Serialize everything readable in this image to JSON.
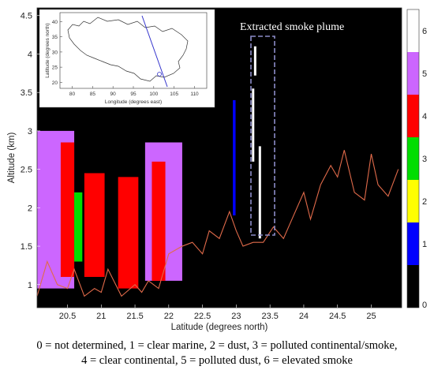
{
  "chart_data": {
    "type": "heatmap",
    "xlabel": "Latitude (degrees north)",
    "ylabel": "Altitude (km)",
    "xlim": [
      20.05,
      25.45
    ],
    "ylim": [
      0.7,
      4.6
    ],
    "x_ticks": [
      "20.5",
      "21",
      "21.5",
      "22",
      "22.5",
      "23",
      "23.5",
      "24",
      "24.5",
      "25"
    ],
    "y_ticks": [
      "1",
      "1.5",
      "2",
      "2.5",
      "3",
      "3.5",
      "4",
      "4.5"
    ],
    "colorbar": {
      "ticks": [
        "0",
        "1",
        "2",
        "3",
        "4",
        "5",
        "6"
      ],
      "colors": [
        "#000000",
        "#0000ff",
        "#ffff00",
        "#00dd00",
        "#ff0000",
        "#cc66ff",
        "#ffffff"
      ]
    },
    "annotation": "Extracted smoke plume",
    "inset": {
      "xlabel": "Longitude (degrees east)",
      "ylabel": "Latitude (degrees north)",
      "x_ticks": [
        "80",
        "85",
        "90",
        "95",
        "100",
        "105",
        "110"
      ],
      "y_ticks": [
        "20",
        "25",
        "30",
        "35",
        "40"
      ]
    },
    "surface_line": {
      "color": "#e06a4a",
      "x": [
        20.05,
        20.2,
        20.35,
        20.5,
        20.6,
        20.75,
        20.9,
        21.0,
        21.1,
        21.3,
        21.5,
        21.6,
        21.7,
        21.85,
        22.0,
        22.2,
        22.35,
        22.5,
        22.6,
        22.75,
        22.9,
        23.0,
        23.1,
        23.25,
        23.4,
        23.55,
        23.7,
        23.85,
        24.0,
        24.1,
        24.25,
        24.4,
        24.5,
        24.6,
        24.75,
        24.9,
        25.0,
        25.1,
        25.25,
        25.4
      ],
      "y": [
        0.85,
        1.3,
        1.0,
        0.95,
        1.2,
        0.85,
        0.95,
        0.9,
        1.2,
        0.85,
        1.0,
        0.9,
        1.05,
        0.95,
        1.4,
        1.5,
        1.55,
        1.4,
        1.7,
        1.6,
        1.95,
        1.7,
        1.5,
        1.55,
        1.55,
        1.75,
        1.6,
        1.9,
        2.2,
        1.85,
        2.3,
        2.55,
        2.4,
        2.75,
        2.2,
        2.1,
        2.7,
        2.3,
        2.15,
        2.5
      ]
    },
    "layers": [
      {
        "class": 5,
        "x": [
          20.05,
          20.6
        ],
        "y": [
          0.95,
          3.0
        ]
      },
      {
        "class": 5,
        "x": [
          21.65,
          22.2
        ],
        "y": [
          1.05,
          2.85
        ]
      },
      {
        "class": 4,
        "x": [
          20.4,
          20.6
        ],
        "y": [
          1.1,
          2.85
        ]
      },
      {
        "class": 4,
        "x": [
          20.75,
          21.05
        ],
        "y": [
          1.1,
          2.45
        ]
      },
      {
        "class": 4,
        "x": [
          21.25,
          21.55
        ],
        "y": [
          0.95,
          2.4
        ]
      },
      {
        "class": 4,
        "x": [
          21.75,
          21.95
        ],
        "y": [
          1.05,
          2.6
        ]
      },
      {
        "class": 3,
        "x": [
          20.6,
          20.72
        ],
        "y": [
          1.3,
          2.2
        ]
      },
      {
        "class": 1,
        "x": [
          22.95,
          22.99
        ],
        "y": [
          1.9,
          3.4
        ]
      }
    ],
    "plume_segments": [
      {
        "x": 23.28,
        "y": [
          3.72,
          4.1
        ]
      },
      {
        "x": 23.25,
        "y": [
          2.6,
          3.55
        ]
      },
      {
        "x": 23.35,
        "y": [
          1.6,
          2.8
        ]
      }
    ],
    "caption": [
      "0 = not determined, 1 = clear marine, 2 = dust, 3 = polluted continental/smoke,",
      "4 = clear continental, 5 = polluted dust, 6 = elevated smoke"
    ]
  }
}
